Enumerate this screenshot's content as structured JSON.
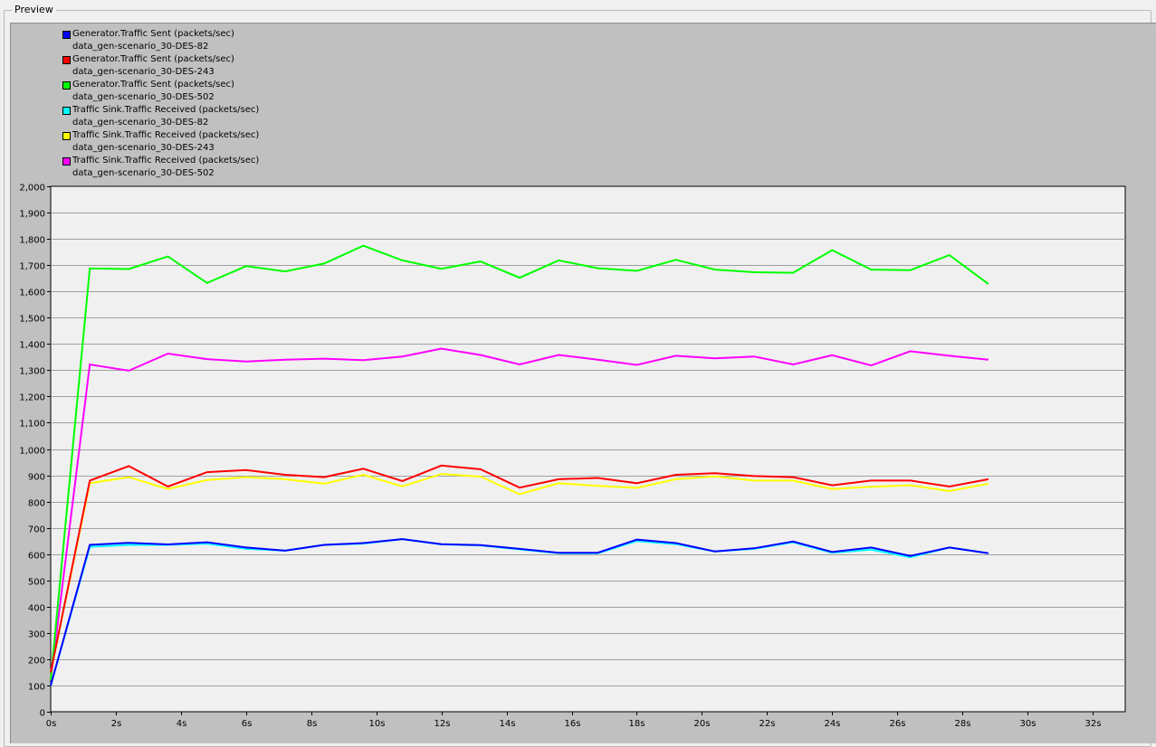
{
  "window": {
    "group_title": "Preview"
  },
  "legend": [
    {
      "metric": "Generator.Traffic Sent (packets/sec)",
      "scenario": "data_gen-scenario_30-DES-82",
      "color": "#0000ff"
    },
    {
      "metric": "Generator.Traffic Sent (packets/sec)",
      "scenario": "data_gen-scenario_30-DES-243",
      "color": "#ff0000"
    },
    {
      "metric": "Generator.Traffic Sent (packets/sec)",
      "scenario": "data_gen-scenario_30-DES-502",
      "color": "#00ff00"
    },
    {
      "metric": "Traffic Sink.Traffic Received (packets/sec)",
      "scenario": "data_gen-scenario_30-DES-82",
      "color": "#00ffff"
    },
    {
      "metric": "Traffic Sink.Traffic Received (packets/sec)",
      "scenario": "data_gen-scenario_30-DES-243",
      "color": "#ffff00"
    },
    {
      "metric": "Traffic Sink.Traffic Received (packets/sec)",
      "scenario": "data_gen-scenario_30-DES-502",
      "color": "#ff00ff"
    }
  ],
  "chart_data": {
    "type": "line",
    "title": "",
    "xlabel": "",
    "ylabel": "",
    "xlim": [
      0,
      33
    ],
    "ylim": [
      0,
      2000
    ],
    "grid": true,
    "legend_position": "top-left",
    "x_ticks": [
      "0s",
      "2s",
      "4s",
      "6s",
      "8s",
      "10s",
      "12s",
      "14s",
      "16s",
      "18s",
      "20s",
      "22s",
      "24s",
      "26s",
      "28s",
      "30s",
      "32s"
    ],
    "y_ticks": [
      "0",
      "100",
      "200",
      "300",
      "400",
      "500",
      "600",
      "700",
      "800",
      "900",
      "1,000",
      "1,100",
      "1,200",
      "1,300",
      "1,400",
      "1,500",
      "1,600",
      "1,700",
      "1,800",
      "1,900",
      "2,000"
    ],
    "x": [
      0,
      1.2,
      2.4,
      3.6,
      4.8,
      6.0,
      7.2,
      8.4,
      9.6,
      10.8,
      12.0,
      13.2,
      14.4,
      15.6,
      16.8,
      18.0,
      19.2,
      20.4,
      21.6,
      22.8,
      24.0,
      25.2,
      26.4,
      27.6,
      28.8
    ],
    "series": [
      {
        "name": "Traffic Sink.Traffic Received (packets/sec) data_gen-scenario_30-DES-502",
        "color": "#ff00ff",
        "values": [
          120,
          1322,
          1298,
          1363,
          1342,
          1333,
          1340,
          1344,
          1338,
          1352,
          1382,
          1358,
          1322,
          1358,
          1340,
          1320,
          1355,
          1345,
          1352,
          1322,
          1357,
          1318,
          1372,
          1355,
          1340
        ]
      },
      {
        "name": "Generator.Traffic Sent (packets/sec) data_gen-scenario_30-DES-502",
        "color": "#00ff00",
        "values": [
          120,
          1687,
          1685,
          1733,
          1632,
          1696,
          1676,
          1706,
          1774,
          1718,
          1686,
          1714,
          1652,
          1718,
          1688,
          1678,
          1720,
          1683,
          1673,
          1671,
          1757,
          1683,
          1681,
          1738,
          1628
        ]
      },
      {
        "name": "Traffic Sink.Traffic Received (packets/sec) data_gen-scenario_30-DES-243",
        "color": "#ffff00",
        "values": [
          150,
          870,
          893,
          848,
          882,
          893,
          885,
          868,
          902,
          858,
          905,
          895,
          828,
          870,
          860,
          852,
          885,
          896,
          880,
          880,
          848,
          856,
          862,
          840,
          868
        ]
      },
      {
        "name": "Generator.Traffic Sent (packets/sec) data_gen-scenario_30-DES-243",
        "color": "#ff0000",
        "values": [
          150,
          880,
          935,
          857,
          912,
          920,
          902,
          893,
          925,
          878,
          937,
          923,
          853,
          885,
          890,
          870,
          902,
          908,
          897,
          893,
          862,
          880,
          880,
          857,
          885
        ]
      },
      {
        "name": "Traffic Sink.Traffic Received (packets/sec) data_gen-scenario_30-DES-82",
        "color": "#00ffff",
        "values": [
          100,
          628,
          635,
          635,
          640,
          620,
          613,
          635,
          640,
          657,
          637,
          633,
          618,
          603,
          603,
          650,
          638,
          610,
          620,
          645,
          605,
          617,
          588,
          625,
          603
        ]
      },
      {
        "name": "Generator.Traffic Sent (packets/sec) data_gen-scenario_30-DES-82",
        "color": "#0000ff",
        "values": [
          100,
          635,
          643,
          637,
          645,
          625,
          613,
          635,
          642,
          657,
          638,
          634,
          620,
          605,
          605,
          655,
          642,
          610,
          622,
          648,
          608,
          625,
          593,
          625,
          603
        ]
      }
    ]
  }
}
